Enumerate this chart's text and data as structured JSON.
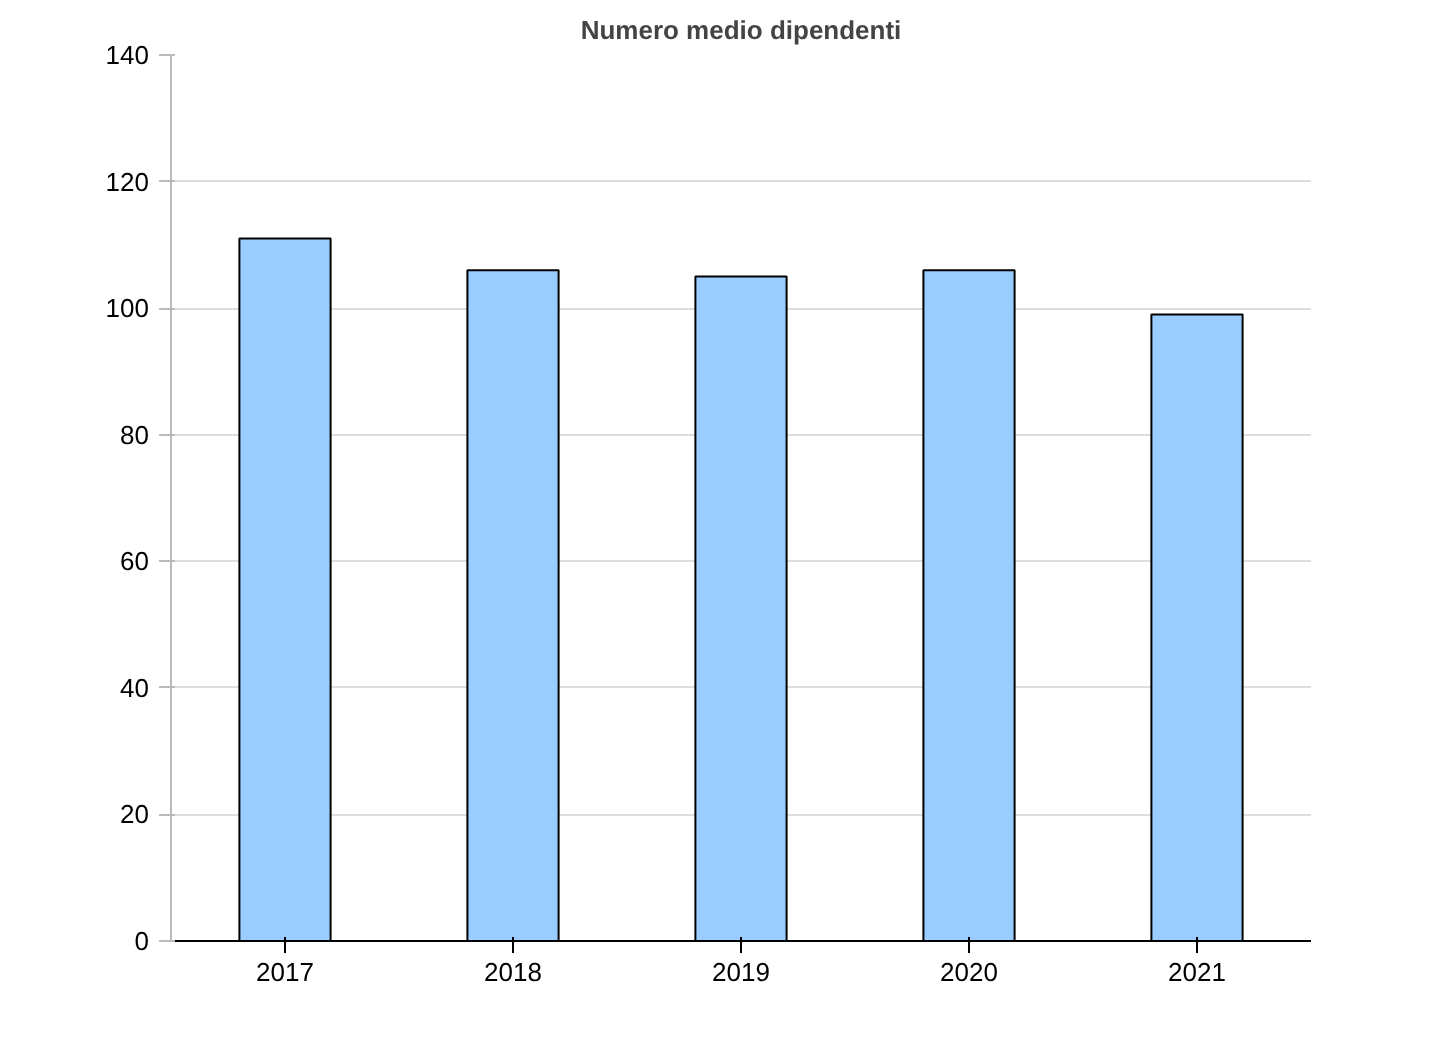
{
  "chart_data": {
    "type": "bar",
    "title": "Numero medio dipendenti",
    "categories": [
      "2017",
      "2018",
      "2019",
      "2020",
      "2021"
    ],
    "values": [
      111,
      106,
      105,
      106,
      99
    ],
    "color": "#99ccff",
    "ylim": [
      0,
      140
    ],
    "yticks": [
      0,
      20,
      40,
      60,
      80,
      100,
      120,
      140
    ],
    "grid": "y"
  }
}
